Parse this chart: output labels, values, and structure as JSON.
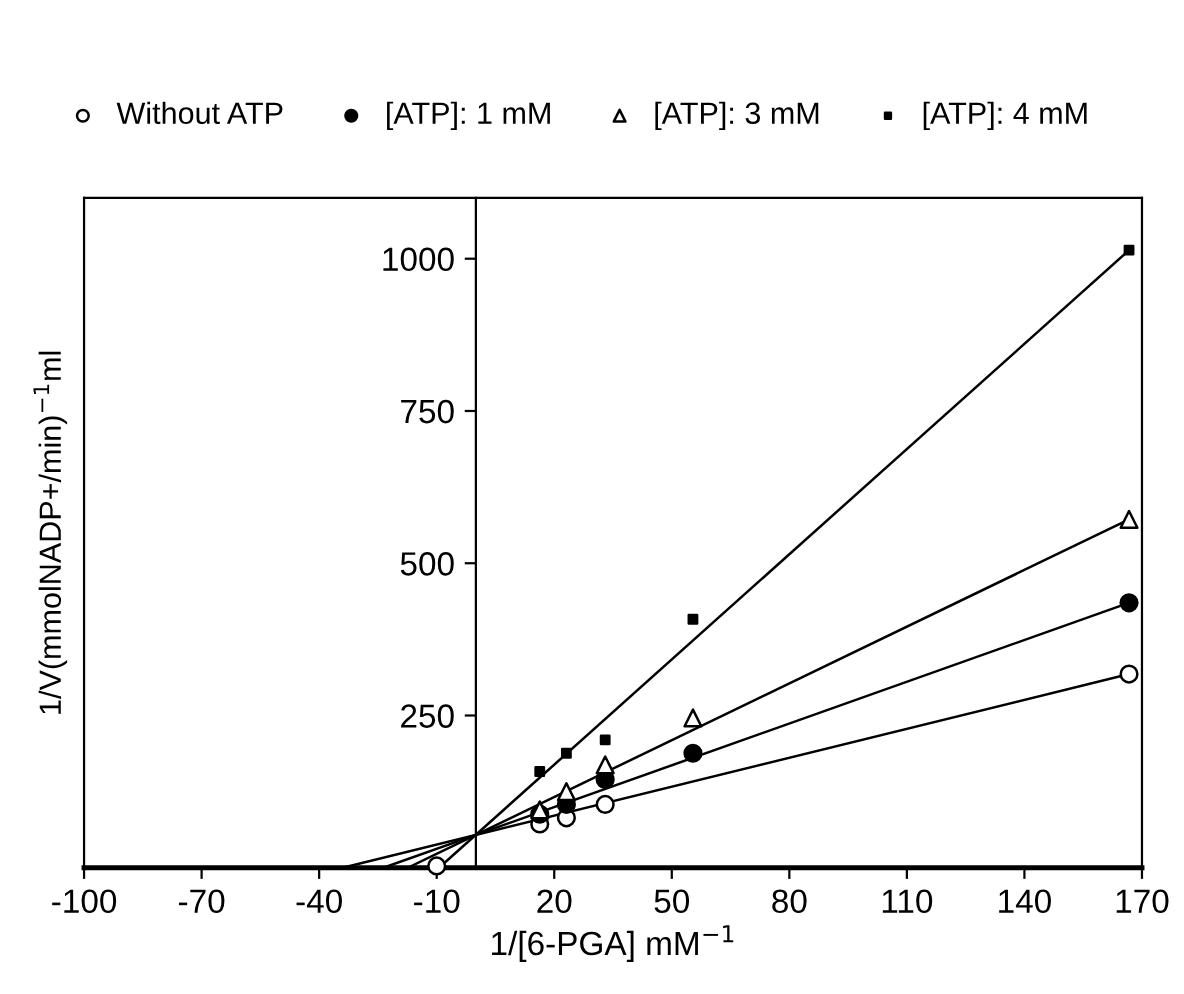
{
  "chart_data": {
    "type": "scatter",
    "xlabel": "1/[6-PGA] mM$^{−1}$",
    "ylabel": "1/V(mmolNADP+/min)$^{−1}$ml",
    "xlim": [
      -100,
      170
    ],
    "xticks": [
      -100,
      -70,
      -40,
      -10,
      20,
      50,
      80,
      110,
      140,
      170
    ],
    "ylim": [
      0,
      1100
    ],
    "yticks": [
      250,
      500,
      750,
      1000
    ],
    "grid": false,
    "legend": "top",
    "series": [
      {
        "name": "Without ATP",
        "marker": "circle",
        "color": "#ffffff",
        "x": [
          -10,
          16.3,
          23.1,
          33,
          166.7
        ],
        "values": [
          3,
          72,
          82,
          104,
          318
        ]
      },
      {
        "name": "[ATP]: 1 mM",
        "marker": "circle",
        "color": "#000000",
        "x": [
          16.3,
          23.1,
          33,
          55.4,
          166.7
        ],
        "values": [
          88,
          104,
          145,
          188,
          435
        ]
      },
      {
        "name": "[ATP]: 3 mM",
        "marker": "triangle",
        "color": "#ffffff",
        "x": [
          16.3,
          23.1,
          33,
          55.4,
          166.7
        ],
        "values": [
          95,
          125,
          169,
          246,
          572
        ]
      },
      {
        "name": "[ATP]: 4 mM",
        "marker": "square",
        "color": "#000000",
        "x": [
          16.3,
          23.1,
          33,
          55.4,
          166.7
        ],
        "values": [
          158,
          188,
          210,
          408,
          1014
        ]
      },
      {
        "type": "line",
        "color": "#000000",
        "x": [
          -34,
          166.7
        ],
        "values": [
          0,
          318
        ]
      },
      {
        "type": "line",
        "color": "#000000",
        "x": [
          -23.6,
          166.7
        ],
        "values": [
          0,
          435
        ]
      },
      {
        "type": "line",
        "color": "#000000",
        "x": [
          -17.4,
          166.7
        ],
        "values": [
          0,
          572
        ]
      },
      {
        "type": "line",
        "color": "#000000",
        "x": [
          -9.4,
          166.7
        ],
        "values": [
          0,
          1014
        ]
      }
    ]
  }
}
